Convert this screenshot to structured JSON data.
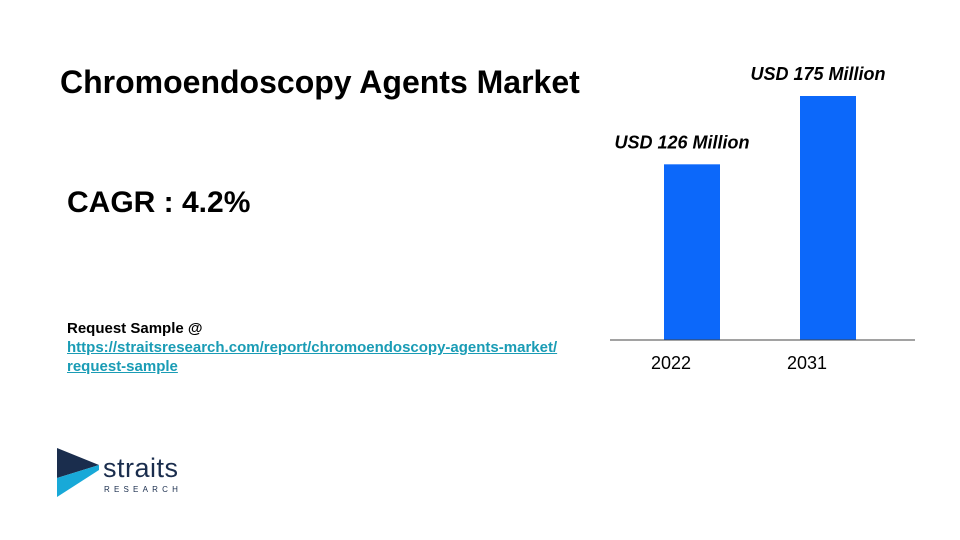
{
  "title": "Chromoendoscopy Agents Market",
  "cagr": "CAGR : 4.2%",
  "request": {
    "label": "Request Sample @",
    "link_line1": "https://straitsresearch.com/report/chromoendoscopy-agents-market/",
    "link_line2": "request-sample"
  },
  "logo": {
    "name": "straits",
    "sub": "RESEARCH"
  },
  "colors": {
    "bar": "#0c68fa",
    "link": "#1a9cb5",
    "axis": "#444444",
    "logo_navy": "#1a2d4d",
    "logo_cyan": "#18a9d8"
  },
  "chart_data": {
    "type": "bar",
    "categories": [
      "2022",
      "2031"
    ],
    "values": [
      126,
      175
    ],
    "data_labels": [
      "USD 126 Million",
      "USD 175 Million"
    ],
    "ylim": [
      0,
      175
    ],
    "grid": false
  }
}
